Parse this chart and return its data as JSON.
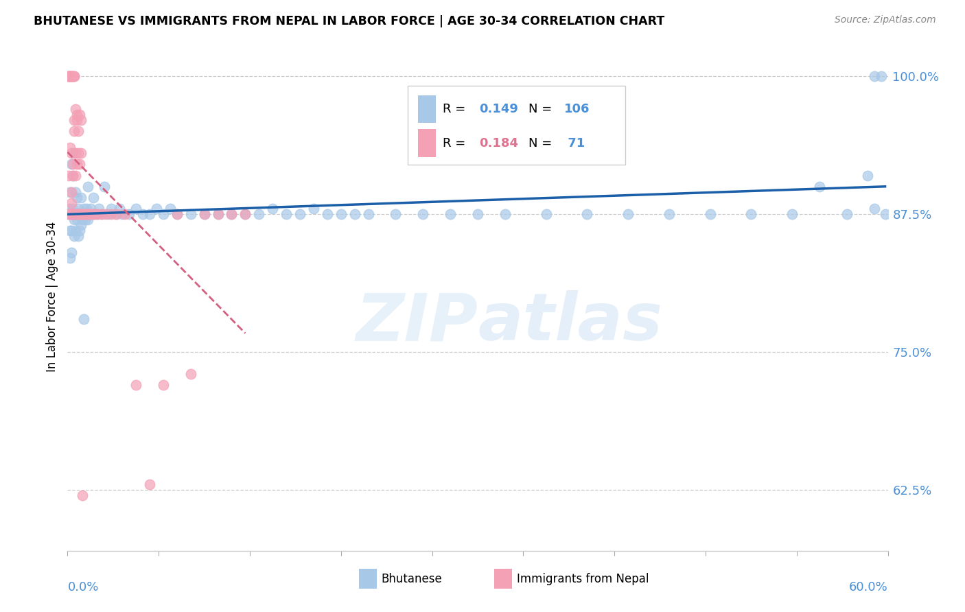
{
  "title": "BHUTANESE VS IMMIGRANTS FROM NEPAL IN LABOR FORCE | AGE 30-34 CORRELATION CHART",
  "source": "Source: ZipAtlas.com",
  "ylabel": "In Labor Force | Age 30-34",
  "xmin": 0.0,
  "xmax": 0.6,
  "ymin": 0.57,
  "ymax": 1.03,
  "legend_bhutanese_R": "0.149",
  "legend_bhutanese_N": "106",
  "legend_nepal_R": "0.184",
  "legend_nepal_N": "71",
  "blue_color": "#a8c8e8",
  "pink_color": "#f4a0b5",
  "trendline_blue": "#1a5fa8",
  "trendline_pink": "#d46080",
  "watermark": "ZIPatlas",
  "ytick_vals": [
    0.625,
    0.75,
    0.875,
    1.0
  ],
  "ytick_labels": [
    "62.5%",
    "75.0%",
    "87.5%",
    "100.0%"
  ],
  "bhutanese_x": [
    0.001,
    0.001,
    0.002,
    0.002,
    0.002,
    0.003,
    0.003,
    0.003,
    0.003,
    0.004,
    0.004,
    0.004,
    0.005,
    0.005,
    0.005,
    0.005,
    0.006,
    0.006,
    0.006,
    0.007,
    0.007,
    0.007,
    0.008,
    0.008,
    0.008,
    0.009,
    0.009,
    0.01,
    0.01,
    0.01,
    0.011,
    0.011,
    0.012,
    0.012,
    0.013,
    0.013,
    0.014,
    0.015,
    0.015,
    0.016,
    0.017,
    0.018,
    0.019,
    0.02,
    0.022,
    0.023,
    0.025,
    0.027,
    0.03,
    0.032,
    0.035,
    0.038,
    0.04,
    0.045,
    0.05,
    0.055,
    0.06,
    0.065,
    0.07,
    0.075,
    0.08,
    0.09,
    0.1,
    0.11,
    0.12,
    0.13,
    0.14,
    0.15,
    0.16,
    0.17,
    0.18,
    0.19,
    0.2,
    0.21,
    0.22,
    0.24,
    0.26,
    0.28,
    0.3,
    0.32,
    0.35,
    0.38,
    0.41,
    0.44,
    0.47,
    0.5,
    0.53,
    0.55,
    0.57,
    0.585,
    0.59,
    0.59,
    0.595,
    0.598,
    0.001,
    0.002,
    0.003,
    0.004,
    0.005,
    0.006,
    0.007,
    0.008,
    0.009,
    0.01,
    0.012,
    0.015
  ],
  "bhutanese_y": [
    0.875,
    0.88,
    0.895,
    0.875,
    0.86,
    0.92,
    0.875,
    0.86,
    0.84,
    0.875,
    0.88,
    0.91,
    0.875,
    0.855,
    0.93,
    0.87,
    0.875,
    0.86,
    0.895,
    0.875,
    0.87,
    0.89,
    0.875,
    0.855,
    0.88,
    0.875,
    0.86,
    0.875,
    0.865,
    0.89,
    0.875,
    0.87,
    0.875,
    0.88,
    0.875,
    0.87,
    0.88,
    0.875,
    0.9,
    0.875,
    0.88,
    0.875,
    0.89,
    0.875,
    0.875,
    0.88,
    0.875,
    0.9,
    0.875,
    0.88,
    0.875,
    0.88,
    0.875,
    0.875,
    0.88,
    0.875,
    0.875,
    0.88,
    0.875,
    0.88,
    0.875,
    0.875,
    0.875,
    0.875,
    0.875,
    0.875,
    0.875,
    0.88,
    0.875,
    0.875,
    0.88,
    0.875,
    0.875,
    0.875,
    0.875,
    0.875,
    0.875,
    0.875,
    0.875,
    0.875,
    0.875,
    0.875,
    0.875,
    0.875,
    0.875,
    0.875,
    0.875,
    0.9,
    0.875,
    0.91,
    0.88,
    1.0,
    1.0,
    0.875,
    1.0,
    0.835,
    0.875,
    0.875,
    0.875,
    0.875,
    0.875,
    0.875,
    0.875,
    0.875,
    0.78,
    0.87
  ],
  "nepal_x": [
    0.001,
    0.001,
    0.001,
    0.001,
    0.002,
    0.002,
    0.002,
    0.002,
    0.003,
    0.003,
    0.003,
    0.003,
    0.003,
    0.004,
    0.004,
    0.004,
    0.004,
    0.005,
    0.005,
    0.005,
    0.005,
    0.006,
    0.006,
    0.006,
    0.007,
    0.007,
    0.007,
    0.008,
    0.008,
    0.009,
    0.009,
    0.01,
    0.01,
    0.011,
    0.012,
    0.013,
    0.014,
    0.015,
    0.016,
    0.018,
    0.02,
    0.022,
    0.025,
    0.028,
    0.032,
    0.036,
    0.042,
    0.05,
    0.06,
    0.07,
    0.08,
    0.09,
    0.1,
    0.11,
    0.12,
    0.13,
    0.001,
    0.001,
    0.002,
    0.002,
    0.003,
    0.003,
    0.004,
    0.004,
    0.005,
    0.006,
    0.007,
    0.008,
    0.009,
    0.01,
    0.011
  ],
  "nepal_y": [
    0.875,
    0.91,
    1.0,
    1.0,
    0.875,
    0.935,
    1.0,
    1.0,
    0.875,
    0.895,
    0.885,
    0.93,
    1.0,
    0.875,
    0.92,
    0.91,
    1.0,
    0.875,
    0.96,
    0.95,
    1.0,
    0.875,
    0.93,
    0.91,
    0.875,
    0.92,
    0.965,
    0.875,
    0.93,
    0.875,
    0.92,
    0.875,
    0.93,
    0.875,
    0.875,
    0.875,
    0.875,
    0.875,
    0.875,
    0.875,
    0.875,
    0.875,
    0.875,
    0.875,
    0.875,
    0.875,
    0.875,
    0.72,
    0.63,
    0.72,
    0.875,
    0.73,
    0.875,
    0.875,
    0.875,
    0.875,
    1.0,
    1.0,
    1.0,
    1.0,
    1.0,
    1.0,
    1.0,
    1.0,
    1.0,
    0.97,
    0.96,
    0.95,
    0.965,
    0.96,
    0.62
  ]
}
